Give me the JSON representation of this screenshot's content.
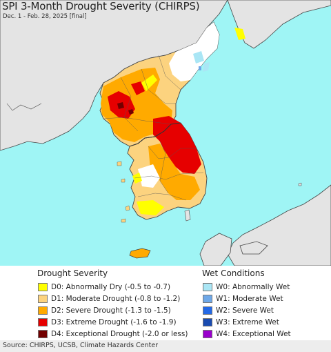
{
  "header": {
    "title": "SPI 3-Month Drought Severity (CHIRPS)",
    "subtitle": "Dec. 1 - Feb. 28, 2025 [final]"
  },
  "legend": {
    "drought": {
      "title": "Drought Severity",
      "items": [
        {
          "label": "D0: Abnormally Dry (-0.5 to -0.7)",
          "color": "#ffff00"
        },
        {
          "label": "D1: Moderate Drought (-0.8 to -1.2)",
          "color": "#fcd37f"
        },
        {
          "label": "D2: Severe Drought (-1.3 to -1.5)",
          "color": "#ffaa00"
        },
        {
          "label": "D3: Extreme Drought (-1.6 to -1.9)",
          "color": "#e60000"
        },
        {
          "label": "D4: Exceptional Drought (-2.0 or less)",
          "color": "#730000"
        }
      ]
    },
    "wet": {
      "title": "Wet Conditions",
      "items": [
        {
          "label": "W0: Abnormally Wet",
          "color": "#aae6f5"
        },
        {
          "label": "W1: Moderate Wet",
          "color": "#6ea8e8"
        },
        {
          "label": "W2: Severe Wet",
          "color": "#2469e6"
        },
        {
          "label": "W3: Extreme Wet",
          "color": "#1a4bb0"
        },
        {
          "label": "W4: Exceptional Wet",
          "color": "#9900cc"
        }
      ]
    }
  },
  "footer": {
    "source": "Source: CHIRPS, UCSB, Climate Hazards Center"
  },
  "colors": {
    "sea": "#9ff5f5",
    "land_other": "#e4e4e4",
    "border": "#444444"
  }
}
